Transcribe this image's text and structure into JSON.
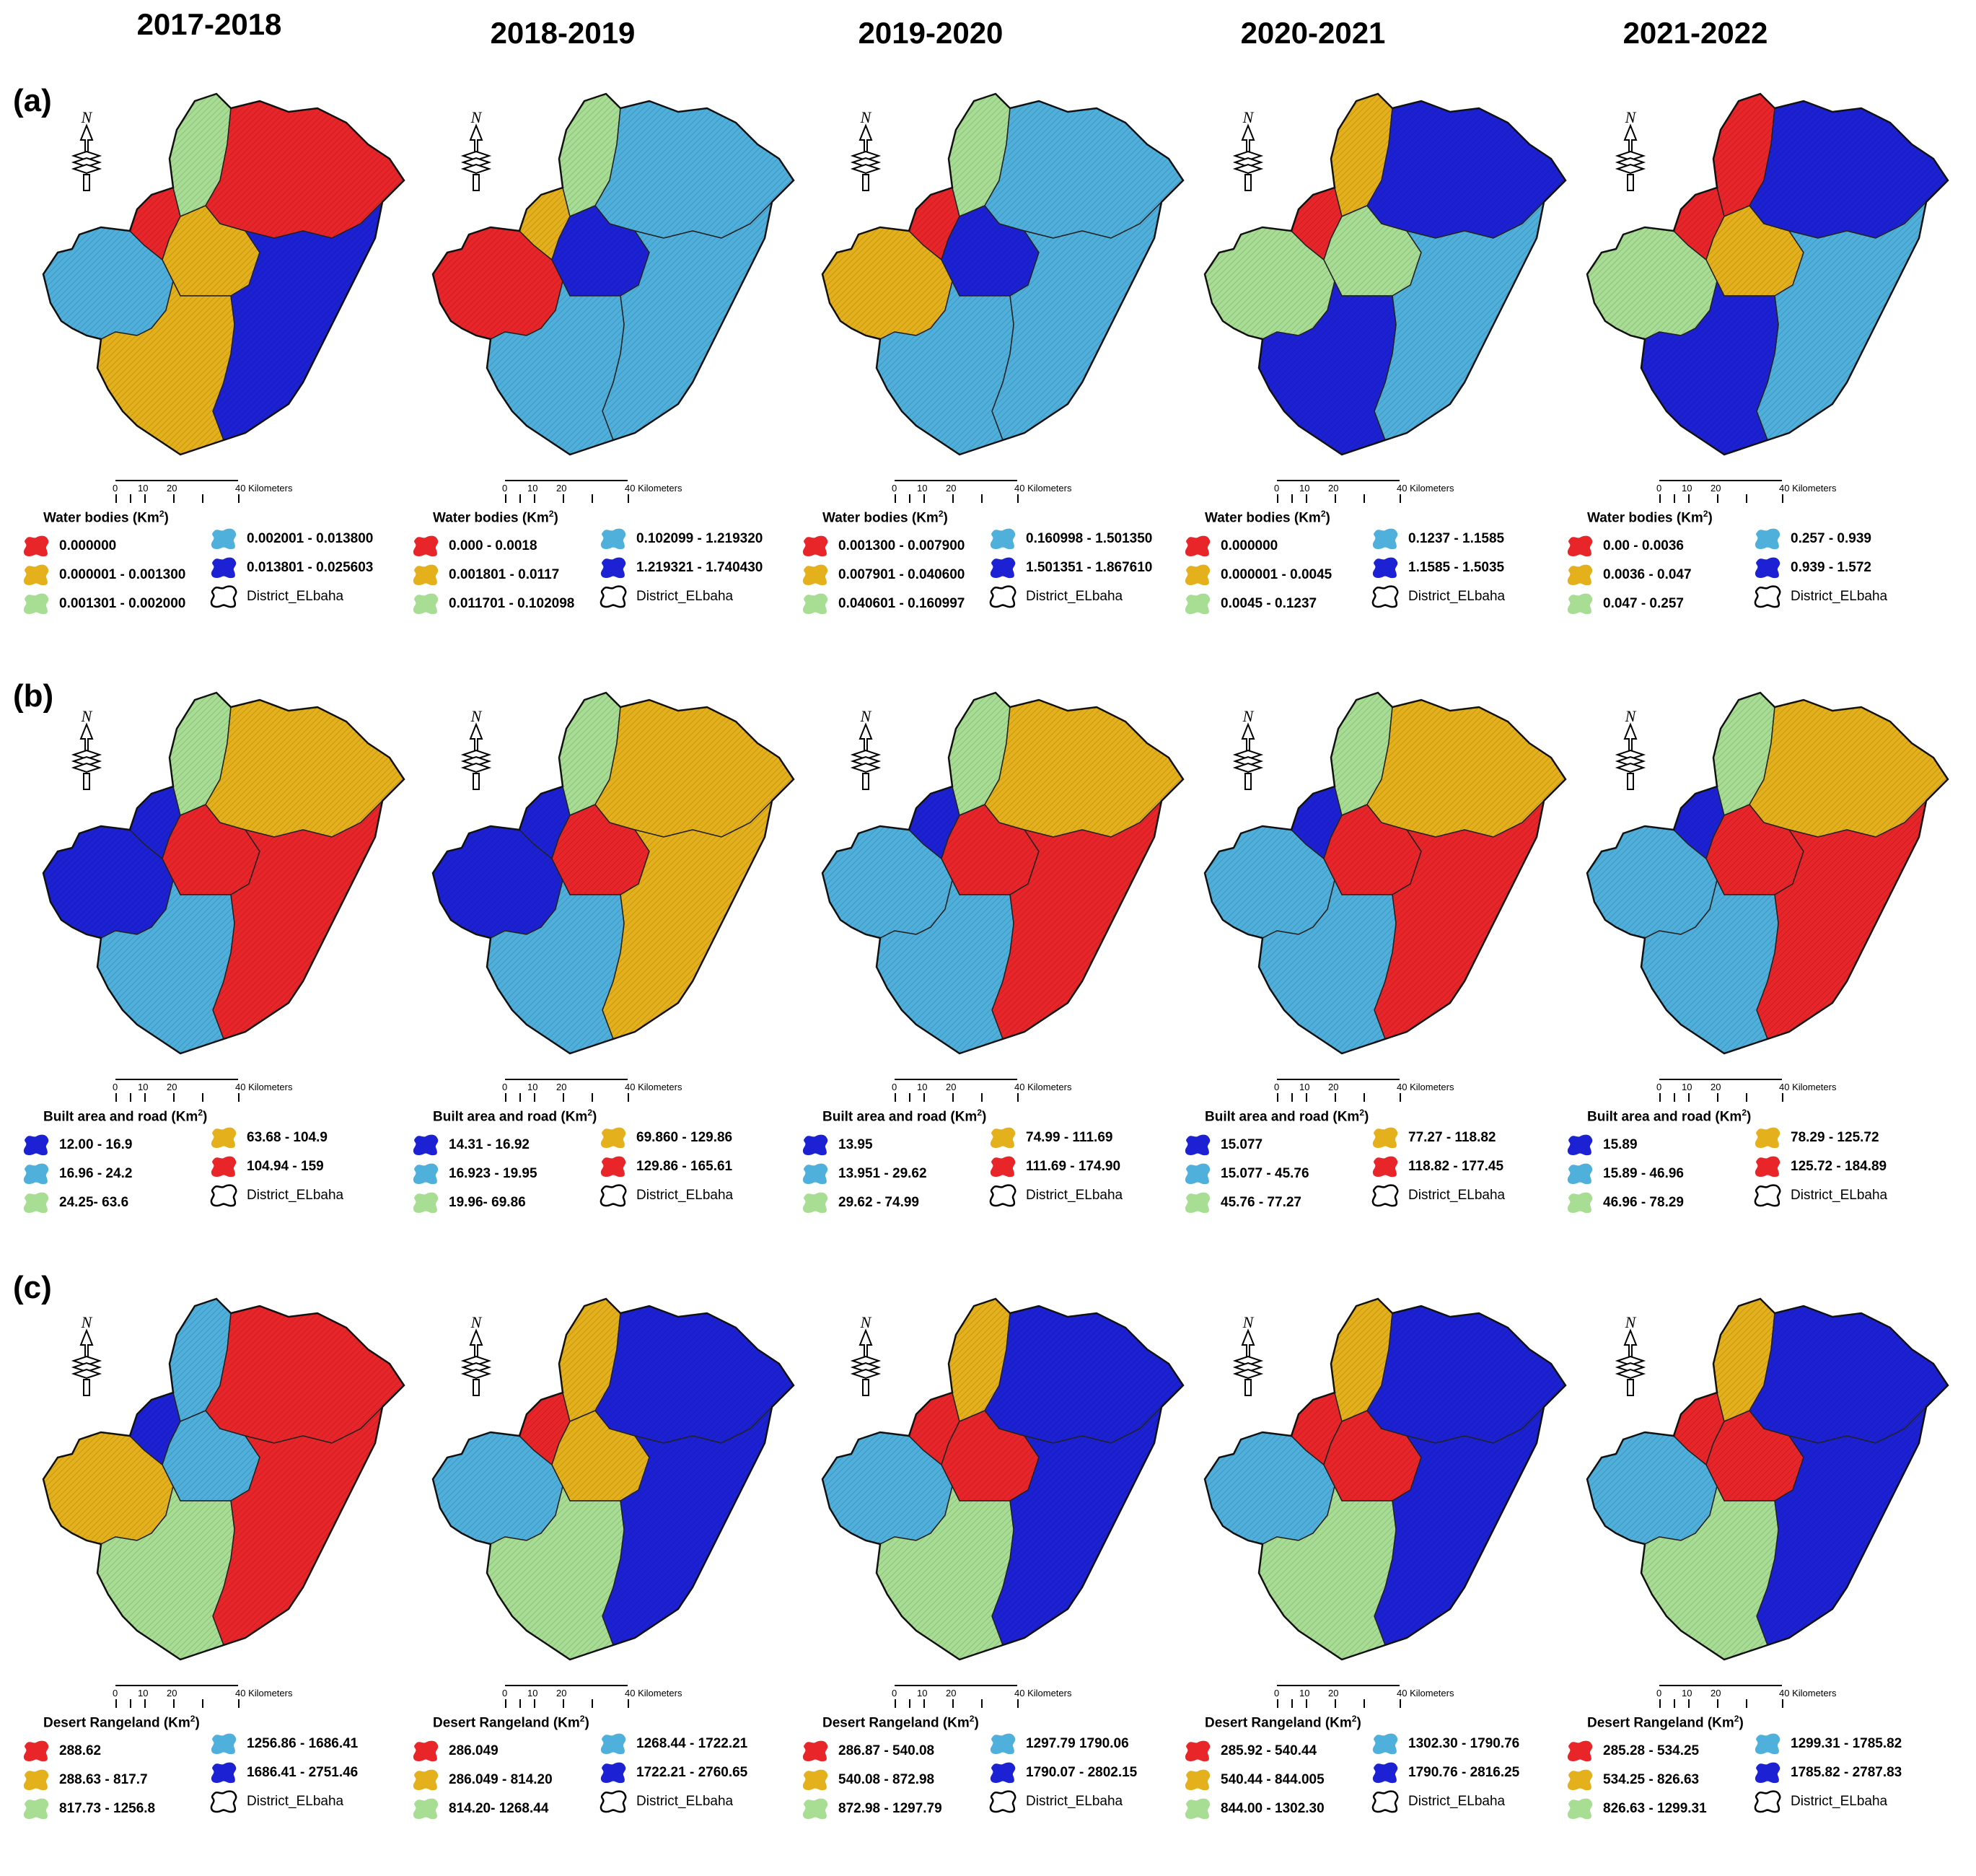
{
  "column_titles": [
    "2017-2018",
    "2018-2019",
    "2019-2020",
    "2020-2021",
    "2021-2022"
  ],
  "row_labels": [
    "(a)",
    "(b)",
    "(c)"
  ],
  "scale": {
    "ticks": [
      "0",
      "10",
      "20"
    ],
    "unit": "40 Kilometers"
  },
  "north_label": "N",
  "colors": {
    "red": "#e8262a",
    "yellow": "#e4b11c",
    "green": "#a8dd94",
    "light_blue": "#4fb0dc",
    "blue": "#1c22d4",
    "boundary": "#ffffff"
  },
  "boundary_label": "District_ELbaha",
  "rows": [
    {
      "title_prefix": "Water bodies (Km",
      "title_suffix": ")",
      "title_sup": "2",
      "panels": [
        {
          "zones": [
            "light_blue",
            "red",
            "green",
            "yellow",
            "red",
            "blue",
            "yellow"
          ],
          "legend": [
            {
              "color": "red",
              "label": "0.000000"
            },
            {
              "color": "yellow",
              "label": "0.000001 - 0.001300"
            },
            {
              "color": "green",
              "label": "0.001301 - 0.002000"
            },
            {
              "color": "light_blue",
              "label": "0.002001 - 0.013800"
            },
            {
              "color": "blue",
              "label": "0.013801 - 0.025603"
            }
          ]
        },
        {
          "zones": [
            "red",
            "yellow",
            "green",
            "blue",
            "light_blue",
            "light_blue",
            "light_blue"
          ],
          "legend": [
            {
              "color": "red",
              "label": "0.000 - 0.0018"
            },
            {
              "color": "yellow",
              "label": "0.001801 - 0.0117"
            },
            {
              "color": "green",
              "label": "0.011701 - 0.102098"
            },
            {
              "color": "light_blue",
              "label": "0.102099 - 1.219320"
            },
            {
              "color": "blue",
              "label": "1.219321 - 1.740430"
            }
          ]
        },
        {
          "zones": [
            "yellow",
            "red",
            "green",
            "blue",
            "light_blue",
            "light_blue",
            "light_blue"
          ],
          "legend": [
            {
              "color": "red",
              "label": "0.001300 - 0.007900"
            },
            {
              "color": "yellow",
              "label": "0.007901 - 0.040600"
            },
            {
              "color": "green",
              "label": "0.040601 - 0.160997"
            },
            {
              "color": "light_blue",
              "label": "0.160998 - 1.501350"
            },
            {
              "color": "blue",
              "label": "1.501351 - 1.867610"
            }
          ]
        },
        {
          "zones": [
            "green",
            "red",
            "yellow",
            "green",
            "blue",
            "light_blue",
            "blue"
          ],
          "legend": [
            {
              "color": "red",
              "label": "0.000000"
            },
            {
              "color": "yellow",
              "label": "0.000001 - 0.0045"
            },
            {
              "color": "green",
              "label": "0.0045 - 0.1237"
            },
            {
              "color": "light_blue",
              "label": "0.1237 - 1.1585"
            },
            {
              "color": "blue",
              "label": "1.1585 - 1.5035"
            }
          ]
        },
        {
          "zones": [
            "green",
            "red",
            "red",
            "yellow",
            "blue",
            "light_blue",
            "blue"
          ],
          "legend": [
            {
              "color": "red",
              "label": "0.00 - 0.0036"
            },
            {
              "color": "yellow",
              "label": "0.0036 - 0.047"
            },
            {
              "color": "green",
              "label": "0.047 - 0.257"
            },
            {
              "color": "light_blue",
              "label": "0.257 - 0.939"
            },
            {
              "color": "blue",
              "label": "0.939 - 1.572"
            }
          ]
        }
      ]
    },
    {
      "title_prefix": "Built area   and road (Km",
      "title_suffix": ")",
      "title_sup": "2",
      "panels": [
        {
          "zones": [
            "blue",
            "blue",
            "green",
            "red",
            "yellow",
            "red",
            "light_blue"
          ],
          "legend": [
            {
              "color": "blue",
              "label": "12.00 - 16.9"
            },
            {
              "color": "light_blue",
              "label": "16.96 - 24.2"
            },
            {
              "color": "green",
              "label": "24.25- 63.6"
            },
            {
              "color": "yellow",
              "label": "63.68 - 104.9"
            },
            {
              "color": "red",
              "label": "104.94 - 159"
            }
          ]
        },
        {
          "zones": [
            "blue",
            "blue",
            "green",
            "red",
            "yellow",
            "yellow",
            "light_blue"
          ],
          "legend": [
            {
              "color": "blue",
              "label": "14.31 - 16.92"
            },
            {
              "color": "light_blue",
              "label": "16.923 - 19.95"
            },
            {
              "color": "green",
              "label": "19.96- 69.86"
            },
            {
              "color": "yellow",
              "label": "69.860 - 129.86"
            },
            {
              "color": "red",
              "label": "129.86 - 165.61"
            }
          ]
        },
        {
          "zones": [
            "light_blue",
            "blue",
            "green",
            "red",
            "yellow",
            "red",
            "light_blue"
          ],
          "legend": [
            {
              "color": "blue",
              "label": "13.95"
            },
            {
              "color": "light_blue",
              "label": "13.951 - 29.62"
            },
            {
              "color": "green",
              "label": "29.62 - 74.99"
            },
            {
              "color": "yellow",
              "label": "74.99 - 111.69"
            },
            {
              "color": "red",
              "label": "111.69 - 174.90"
            }
          ]
        },
        {
          "zones": [
            "light_blue",
            "blue",
            "green",
            "red",
            "yellow",
            "red",
            "light_blue"
          ],
          "legend": [
            {
              "color": "blue",
              "label": "15.077"
            },
            {
              "color": "light_blue",
              "label": "15.077 - 45.76"
            },
            {
              "color": "green",
              "label": "45.76 - 77.27"
            },
            {
              "color": "yellow",
              "label": "77.27 - 118.82"
            },
            {
              "color": "red",
              "label": "118.82 - 177.45"
            }
          ]
        },
        {
          "zones": [
            "light_blue",
            "blue",
            "green",
            "red",
            "yellow",
            "red",
            "light_blue"
          ],
          "legend": [
            {
              "color": "blue",
              "label": "15.89"
            },
            {
              "color": "light_blue",
              "label": "15.89 - 46.96"
            },
            {
              "color": "green",
              "label": "46.96 - 78.29"
            },
            {
              "color": "yellow",
              "label": "78.29 - 125.72"
            },
            {
              "color": "red",
              "label": "125.72 - 184.89"
            }
          ]
        }
      ]
    },
    {
      "title_prefix": "Desert Rangeland (Km",
      "title_suffix": ")",
      "title_sup": "2",
      "panels": [
        {
          "zones": [
            "yellow",
            "blue",
            "light_blue",
            "light_blue",
            "red",
            "red",
            "green"
          ],
          "legend": [
            {
              "color": "red",
              "label": "288.62"
            },
            {
              "color": "yellow",
              "label": "288.63 - 817.7"
            },
            {
              "color": "green",
              "label": "817.73 - 1256.8"
            },
            {
              "color": "light_blue",
              "label": "1256.86 - 1686.41"
            },
            {
              "color": "blue",
              "label": "1686.41 - 2751.46"
            }
          ]
        },
        {
          "zones": [
            "light_blue",
            "red",
            "yellow",
            "yellow",
            "blue",
            "blue",
            "green"
          ],
          "legend": [
            {
              "color": "red",
              "label": "286.049"
            },
            {
              "color": "yellow",
              "label": "286.049 - 814.20"
            },
            {
              "color": "green",
              "label": "814.20- 1268.44"
            },
            {
              "color": "light_blue",
              "label": "1268.44 - 1722.21"
            },
            {
              "color": "blue",
              "label": "1722.21 - 2760.65"
            }
          ]
        },
        {
          "zones": [
            "light_blue",
            "red",
            "yellow",
            "red",
            "blue",
            "blue",
            "green"
          ],
          "legend": [
            {
              "color": "red",
              "label": "286.87 - 540.08"
            },
            {
              "color": "yellow",
              "label": "540.08 - 872.98"
            },
            {
              "color": "green",
              "label": "872.98 - 1297.79"
            },
            {
              "color": "light_blue",
              "label": "1297.79 1790.06"
            },
            {
              "color": "blue",
              "label": "1790.07 - 2802.15"
            }
          ]
        },
        {
          "zones": [
            "light_blue",
            "red",
            "yellow",
            "red",
            "blue",
            "blue",
            "green"
          ],
          "legend": [
            {
              "color": "red",
              "label": "285.92 - 540.44"
            },
            {
              "color": "yellow",
              "label": "540.44 - 844.005"
            },
            {
              "color": "green",
              "label": "844.00 - 1302.30"
            },
            {
              "color": "light_blue",
              "label": "1302.30 - 1790.76"
            },
            {
              "color": "blue",
              "label": "1790.76 - 2816.25"
            }
          ]
        },
        {
          "zones": [
            "light_blue",
            "red",
            "yellow",
            "red",
            "blue",
            "blue",
            "green"
          ],
          "legend": [
            {
              "color": "red",
              "label": "285.28 - 534.25"
            },
            {
              "color": "yellow",
              "label": "534.25 - 826.63"
            },
            {
              "color": "green",
              "label": "826.63 - 1299.31"
            },
            {
              "color": "light_blue",
              "label": "1299.31 - 1785.82"
            },
            {
              "color": "blue",
              "label": "1785.82 - 2787.83"
            }
          ]
        }
      ]
    }
  ]
}
